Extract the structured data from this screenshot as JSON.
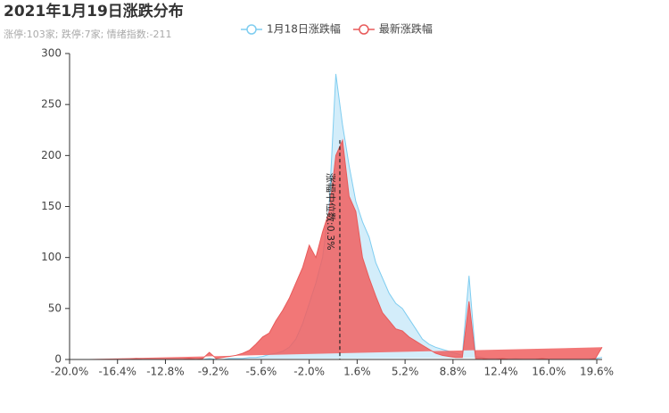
{
  "chart_data": {
    "type": "area",
    "title": "2021年1月19日涨跌分布",
    "subtitle": "涨停:103家; 跌停:7家; 情绪指数:-211",
    "x": [
      -20,
      -19.5,
      -19,
      -18.5,
      -18,
      -17.5,
      -17,
      -16.5,
      -16,
      -15.5,
      -15,
      -14.5,
      -14,
      -13.5,
      -13,
      -12.5,
      -12,
      -11.5,
      -11,
      -10.5,
      -10,
      -9.5,
      -9,
      -8.5,
      -8,
      -7.5,
      -7,
      -6.5,
      -6,
      -5.5,
      -5,
      -4.5,
      -4,
      -3.5,
      -3,
      -2.5,
      -2,
      -1.5,
      -1,
      -0.5,
      0,
      0.5,
      1,
      1.5,
      2,
      2.5,
      3,
      3.5,
      4,
      4.5,
      5,
      5.5,
      6,
      6.5,
      7,
      7.5,
      8,
      8.5,
      9,
      9.5,
      10,
      10.5,
      11,
      11.5,
      12,
      12.5,
      13,
      13.5,
      14,
      14.5,
      15,
      15.5,
      16,
      16.5,
      17,
      17.5,
      18,
      18.5,
      19,
      19.5,
      20
    ],
    "series": [
      {
        "name": "1月18日涨跌幅",
        "color": "#7fcdf0",
        "fill": "rgba(175,222,245,0.55)",
        "values": [
          0,
          0,
          0,
          0,
          0,
          0,
          0,
          0,
          0,
          0,
          0,
          0,
          0,
          0,
          0,
          0,
          0,
          0,
          0,
          0,
          0,
          1,
          0,
          0,
          1,
          1,
          1,
          2,
          2,
          3,
          5,
          6,
          8,
          12,
          20,
          35,
          55,
          75,
          100,
          150,
          280,
          230,
          190,
          155,
          135,
          120,
          95,
          80,
          65,
          55,
          50,
          40,
          30,
          20,
          15,
          12,
          10,
          8,
          6,
          4,
          82,
          3,
          2,
          1,
          1,
          1,
          0,
          1,
          0,
          0,
          0,
          1,
          0,
          0,
          0,
          0,
          0,
          0,
          0,
          1,
          2
        ]
      },
      {
        "name": "最新涨跌幅",
        "color": "#e85a5a",
        "fill": "rgba(240,95,95,0.85)",
        "values": [
          0,
          0,
          0,
          0,
          0,
          0,
          0,
          0,
          0,
          0,
          1,
          0,
          0,
          0,
          0,
          0,
          0,
          0,
          1,
          0,
          1,
          7,
          1,
          2,
          3,
          4,
          6,
          9,
          15,
          22,
          26,
          38,
          48,
          60,
          75,
          90,
          112,
          100,
          125,
          145,
          200,
          215,
          160,
          145,
          100,
          80,
          62,
          46,
          38,
          30,
          28,
          22,
          18,
          14,
          10,
          6,
          4,
          3,
          2,
          2,
          57,
          1,
          1,
          0,
          0,
          1,
          0,
          0,
          0,
          0,
          0,
          1,
          0,
          0,
          0,
          0,
          0,
          0,
          0,
          1,
          12
        ]
      }
    ],
    "xlim": [
      -20,
      20
    ],
    "xticks": [
      {
        "value": -20,
        "label": "-20.0%"
      },
      {
        "value": -16.4,
        "label": "-16.4%"
      },
      {
        "value": -12.8,
        "label": "-12.8%"
      },
      {
        "value": -9.2,
        "label": "-9.2%"
      },
      {
        "value": -5.6,
        "label": "-5.6%"
      },
      {
        "value": -2,
        "label": "-2.0%"
      },
      {
        "value": 1.6,
        "label": "1.6%"
      },
      {
        "value": 5.2,
        "label": "5.2%"
      },
      {
        "value": 8.8,
        "label": "8.8%"
      },
      {
        "value": 12.4,
        "label": "12.4%"
      },
      {
        "value": 16,
        "label": "16.0%"
      },
      {
        "value": 19.6,
        "label": "19.6%"
      }
    ],
    "ylim": [
      0,
      300
    ],
    "yticks": [
      0,
      50,
      100,
      150,
      200,
      250,
      300
    ],
    "median": {
      "value": 0.3,
      "label": "涨幅中位数:0.3%"
    }
  }
}
